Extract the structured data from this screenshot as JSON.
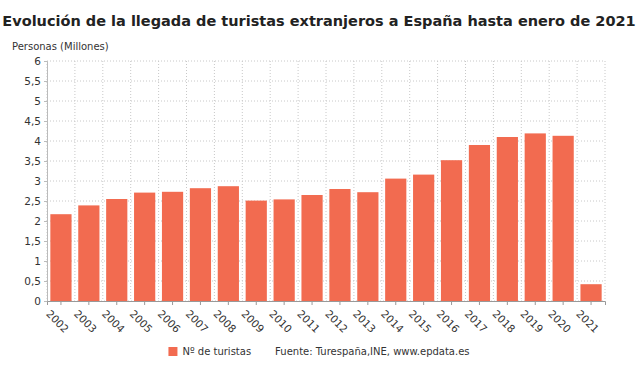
{
  "chart_data": {
    "type": "bar",
    "title": "Evolución de la llegada de turistas extranjeros a España hasta enero de 2021",
    "y_label": "Personas (Millones)",
    "source": "Fuente: Turespaña,INE, www.epdata.es",
    "categories": [
      "2002",
      "2003",
      "2004",
      "2005",
      "2006",
      "2007",
      "2008",
      "2009",
      "2010",
      "2011",
      "2012",
      "2013",
      "2014",
      "2015",
      "2016",
      "2017",
      "2018",
      "2019",
      "2020",
      "2021"
    ],
    "series": [
      {
        "name": "Nº de turistas",
        "color": "#f26b50",
        "values": [
          2.17,
          2.39,
          2.55,
          2.71,
          2.73,
          2.82,
          2.87,
          2.51,
          2.54,
          2.65,
          2.8,
          2.72,
          3.06,
          3.16,
          3.52,
          3.9,
          4.1,
          4.19,
          4.13,
          0.42
        ]
      }
    ],
    "ylim": [
      0,
      6
    ],
    "yticks": [
      0,
      {
        "value": 0.5,
        "label": "0,5"
      },
      1,
      {
        "value": 1.5,
        "label": "1,5"
      },
      2,
      {
        "value": 2.5,
        "label": "2,5"
      },
      3,
      {
        "value": 3.5,
        "label": "3,5"
      },
      4,
      {
        "value": 4.5,
        "label": "4,5"
      },
      5,
      {
        "value": 5.5,
        "label": "5,5"
      },
      6
    ],
    "grid": true,
    "legend": "bottom"
  }
}
